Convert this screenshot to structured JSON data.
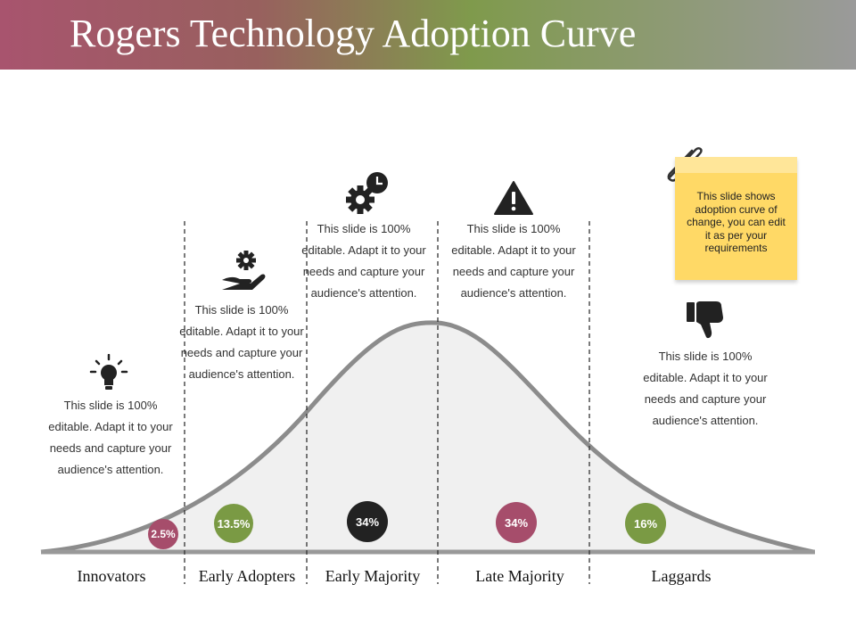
{
  "title": "Rogers Technology Adoption Curve",
  "note": "This slide shows adoption curve of change, you can edit it as per your requirements",
  "stages": [
    {
      "label": "Innovators",
      "percent": "2.5%",
      "color": "#a64d6b",
      "icon": "lightbulb-icon",
      "description": "This slide is 100% editable. Adapt it to your needs and capture your audience's attention."
    },
    {
      "label": "Early Adopters",
      "percent": "13.5%",
      "color": "#7a9a44",
      "icon": "hand-gear-icon",
      "description": "This slide is 100% editable. Adapt it to your needs and capture your audience's attention."
    },
    {
      "label": "Early Majority",
      "percent": "34%",
      "color": "#222222",
      "icon": "gear-clock-icon",
      "description": "This slide is 100% editable. Adapt it to your needs and capture your audience's attention."
    },
    {
      "label": "Late Majority",
      "percent": "34%",
      "color": "#a64d6b",
      "icon": "warning-icon",
      "description": "This slide is 100% editable. Adapt it to your needs and capture your audience's attention."
    },
    {
      "label": "Laggards",
      "percent": "16%",
      "color": "#7a9a44",
      "icon": "thumbs-down-icon",
      "description": "This slide is 100% editable. Adapt it to your needs and capture your audience's attention."
    }
  ],
  "colors": {
    "curve": "#8c8c8c",
    "curve_fill": "#f0f0f0",
    "baseline": "#999999",
    "note": "#ffd966"
  }
}
